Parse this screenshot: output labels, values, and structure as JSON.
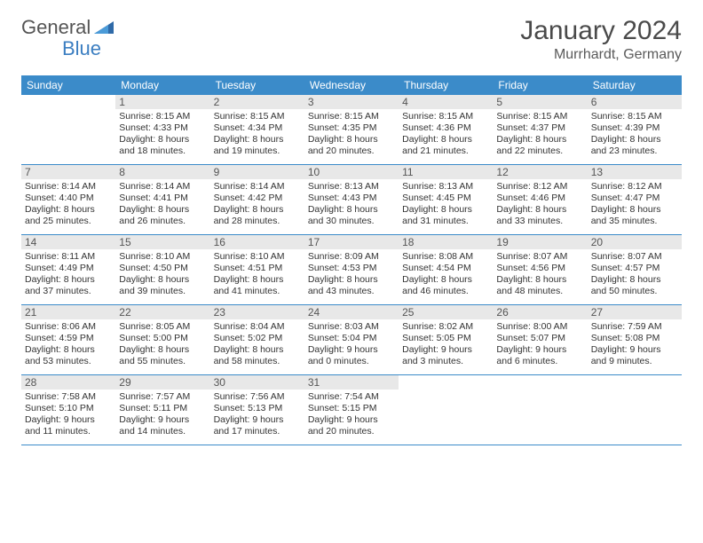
{
  "logo": {
    "word1": "General",
    "word2": "Blue"
  },
  "title": "January 2024",
  "subtitle": "Murrhardt, Germany",
  "day_headers": [
    "Sunday",
    "Monday",
    "Tuesday",
    "Wednesday",
    "Thursday",
    "Friday",
    "Saturday"
  ],
  "colors": {
    "header_bg": "#3b8bc9",
    "header_text": "#ffffff",
    "daynum_bg": "#e8e8e8",
    "week_border": "#3b8bc9",
    "title_text": "#4a4a4a",
    "body_text": "#333333",
    "logo_gray": "#555555",
    "logo_blue": "#3b7ec1"
  },
  "typography": {
    "title_fontsize": 30,
    "subtitle_fontsize": 16,
    "header_fontsize": 12,
    "daynum_fontsize": 12,
    "info_fontsize": 10.5
  },
  "weeks": [
    [
      {
        "num": "",
        "sunrise": "",
        "sunset": "",
        "daylight_l1": "",
        "daylight_l2": ""
      },
      {
        "num": "1",
        "sunrise": "Sunrise: 8:15 AM",
        "sunset": "Sunset: 4:33 PM",
        "daylight_l1": "Daylight: 8 hours",
        "daylight_l2": "and 18 minutes."
      },
      {
        "num": "2",
        "sunrise": "Sunrise: 8:15 AM",
        "sunset": "Sunset: 4:34 PM",
        "daylight_l1": "Daylight: 8 hours",
        "daylight_l2": "and 19 minutes."
      },
      {
        "num": "3",
        "sunrise": "Sunrise: 8:15 AM",
        "sunset": "Sunset: 4:35 PM",
        "daylight_l1": "Daylight: 8 hours",
        "daylight_l2": "and 20 minutes."
      },
      {
        "num": "4",
        "sunrise": "Sunrise: 8:15 AM",
        "sunset": "Sunset: 4:36 PM",
        "daylight_l1": "Daylight: 8 hours",
        "daylight_l2": "and 21 minutes."
      },
      {
        "num": "5",
        "sunrise": "Sunrise: 8:15 AM",
        "sunset": "Sunset: 4:37 PM",
        "daylight_l1": "Daylight: 8 hours",
        "daylight_l2": "and 22 minutes."
      },
      {
        "num": "6",
        "sunrise": "Sunrise: 8:15 AM",
        "sunset": "Sunset: 4:39 PM",
        "daylight_l1": "Daylight: 8 hours",
        "daylight_l2": "and 23 minutes."
      }
    ],
    [
      {
        "num": "7",
        "sunrise": "Sunrise: 8:14 AM",
        "sunset": "Sunset: 4:40 PM",
        "daylight_l1": "Daylight: 8 hours",
        "daylight_l2": "and 25 minutes."
      },
      {
        "num": "8",
        "sunrise": "Sunrise: 8:14 AM",
        "sunset": "Sunset: 4:41 PM",
        "daylight_l1": "Daylight: 8 hours",
        "daylight_l2": "and 26 minutes."
      },
      {
        "num": "9",
        "sunrise": "Sunrise: 8:14 AM",
        "sunset": "Sunset: 4:42 PM",
        "daylight_l1": "Daylight: 8 hours",
        "daylight_l2": "and 28 minutes."
      },
      {
        "num": "10",
        "sunrise": "Sunrise: 8:13 AM",
        "sunset": "Sunset: 4:43 PM",
        "daylight_l1": "Daylight: 8 hours",
        "daylight_l2": "and 30 minutes."
      },
      {
        "num": "11",
        "sunrise": "Sunrise: 8:13 AM",
        "sunset": "Sunset: 4:45 PM",
        "daylight_l1": "Daylight: 8 hours",
        "daylight_l2": "and 31 minutes."
      },
      {
        "num": "12",
        "sunrise": "Sunrise: 8:12 AM",
        "sunset": "Sunset: 4:46 PM",
        "daylight_l1": "Daylight: 8 hours",
        "daylight_l2": "and 33 minutes."
      },
      {
        "num": "13",
        "sunrise": "Sunrise: 8:12 AM",
        "sunset": "Sunset: 4:47 PM",
        "daylight_l1": "Daylight: 8 hours",
        "daylight_l2": "and 35 minutes."
      }
    ],
    [
      {
        "num": "14",
        "sunrise": "Sunrise: 8:11 AM",
        "sunset": "Sunset: 4:49 PM",
        "daylight_l1": "Daylight: 8 hours",
        "daylight_l2": "and 37 minutes."
      },
      {
        "num": "15",
        "sunrise": "Sunrise: 8:10 AM",
        "sunset": "Sunset: 4:50 PM",
        "daylight_l1": "Daylight: 8 hours",
        "daylight_l2": "and 39 minutes."
      },
      {
        "num": "16",
        "sunrise": "Sunrise: 8:10 AM",
        "sunset": "Sunset: 4:51 PM",
        "daylight_l1": "Daylight: 8 hours",
        "daylight_l2": "and 41 minutes."
      },
      {
        "num": "17",
        "sunrise": "Sunrise: 8:09 AM",
        "sunset": "Sunset: 4:53 PM",
        "daylight_l1": "Daylight: 8 hours",
        "daylight_l2": "and 43 minutes."
      },
      {
        "num": "18",
        "sunrise": "Sunrise: 8:08 AM",
        "sunset": "Sunset: 4:54 PM",
        "daylight_l1": "Daylight: 8 hours",
        "daylight_l2": "and 46 minutes."
      },
      {
        "num": "19",
        "sunrise": "Sunrise: 8:07 AM",
        "sunset": "Sunset: 4:56 PM",
        "daylight_l1": "Daylight: 8 hours",
        "daylight_l2": "and 48 minutes."
      },
      {
        "num": "20",
        "sunrise": "Sunrise: 8:07 AM",
        "sunset": "Sunset: 4:57 PM",
        "daylight_l1": "Daylight: 8 hours",
        "daylight_l2": "and 50 minutes."
      }
    ],
    [
      {
        "num": "21",
        "sunrise": "Sunrise: 8:06 AM",
        "sunset": "Sunset: 4:59 PM",
        "daylight_l1": "Daylight: 8 hours",
        "daylight_l2": "and 53 minutes."
      },
      {
        "num": "22",
        "sunrise": "Sunrise: 8:05 AM",
        "sunset": "Sunset: 5:00 PM",
        "daylight_l1": "Daylight: 8 hours",
        "daylight_l2": "and 55 minutes."
      },
      {
        "num": "23",
        "sunrise": "Sunrise: 8:04 AM",
        "sunset": "Sunset: 5:02 PM",
        "daylight_l1": "Daylight: 8 hours",
        "daylight_l2": "and 58 minutes."
      },
      {
        "num": "24",
        "sunrise": "Sunrise: 8:03 AM",
        "sunset": "Sunset: 5:04 PM",
        "daylight_l1": "Daylight: 9 hours",
        "daylight_l2": "and 0 minutes."
      },
      {
        "num": "25",
        "sunrise": "Sunrise: 8:02 AM",
        "sunset": "Sunset: 5:05 PM",
        "daylight_l1": "Daylight: 9 hours",
        "daylight_l2": "and 3 minutes."
      },
      {
        "num": "26",
        "sunrise": "Sunrise: 8:00 AM",
        "sunset": "Sunset: 5:07 PM",
        "daylight_l1": "Daylight: 9 hours",
        "daylight_l2": "and 6 minutes."
      },
      {
        "num": "27",
        "sunrise": "Sunrise: 7:59 AM",
        "sunset": "Sunset: 5:08 PM",
        "daylight_l1": "Daylight: 9 hours",
        "daylight_l2": "and 9 minutes."
      }
    ],
    [
      {
        "num": "28",
        "sunrise": "Sunrise: 7:58 AM",
        "sunset": "Sunset: 5:10 PM",
        "daylight_l1": "Daylight: 9 hours",
        "daylight_l2": "and 11 minutes."
      },
      {
        "num": "29",
        "sunrise": "Sunrise: 7:57 AM",
        "sunset": "Sunset: 5:11 PM",
        "daylight_l1": "Daylight: 9 hours",
        "daylight_l2": "and 14 minutes."
      },
      {
        "num": "30",
        "sunrise": "Sunrise: 7:56 AM",
        "sunset": "Sunset: 5:13 PM",
        "daylight_l1": "Daylight: 9 hours",
        "daylight_l2": "and 17 minutes."
      },
      {
        "num": "31",
        "sunrise": "Sunrise: 7:54 AM",
        "sunset": "Sunset: 5:15 PM",
        "daylight_l1": "Daylight: 9 hours",
        "daylight_l2": "and 20 minutes."
      },
      {
        "num": "",
        "sunrise": "",
        "sunset": "",
        "daylight_l1": "",
        "daylight_l2": ""
      },
      {
        "num": "",
        "sunrise": "",
        "sunset": "",
        "daylight_l1": "",
        "daylight_l2": ""
      },
      {
        "num": "",
        "sunrise": "",
        "sunset": "",
        "daylight_l1": "",
        "daylight_l2": ""
      }
    ]
  ]
}
